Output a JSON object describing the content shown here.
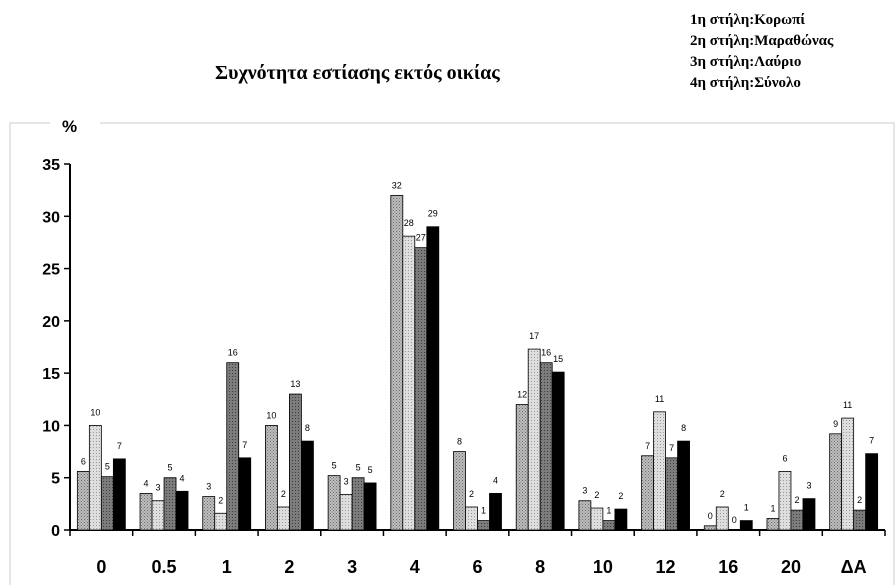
{
  "chart_data": {
    "type": "bar",
    "title": "Συχνότητα εστίασης εκτός οικίας",
    "ylabel": "%",
    "xlabel": "",
    "ylim": [
      0,
      35
    ],
    "yticks": [
      "0",
      "5",
      "10",
      "15",
      "20",
      "25",
      "30",
      "35"
    ],
    "categories": [
      "0",
      "0.5",
      "1",
      "2",
      "3",
      "4",
      "6",
      "8",
      "10",
      "12",
      "16",
      "20",
      "ΔΑ"
    ],
    "legend": [
      "1η στήλη:Κορωπί",
      "2η στήλη:Μαραθώνας",
      "3η στήλη:Λαύριο",
      "4η στήλη:Σύνολο"
    ],
    "grid": false,
    "series": [
      {
        "name": "Κορωπί",
        "color": "#c8c8c8",
        "values": [
          5.6,
          3.5,
          3.2,
          10.0,
          5.2,
          32.0,
          7.5,
          12.0,
          2.8,
          7.1,
          0.4,
          1.1,
          9.2
        ],
        "labels": [
          "6",
          "4",
          "3",
          "10",
          "5",
          "32",
          "8",
          "12",
          "3",
          "7",
          "0",
          "1",
          "9"
        ]
      },
      {
        "name": "Μαραθώνας",
        "color": "#dcdcdc",
        "values": [
          10.0,
          2.8,
          1.6,
          2.2,
          3.4,
          28.1,
          2.2,
          17.3,
          2.1,
          11.3,
          2.2,
          5.6,
          10.7
        ],
        "labels": [
          "10",
          "3",
          "2",
          "2",
          "3",
          "28",
          "2",
          "17",
          "2",
          "11",
          "2",
          "6",
          "11"
        ]
      },
      {
        "name": "Λαύριο",
        "color": "#808080",
        "values": [
          5.1,
          5.0,
          16.0,
          13.0,
          5.0,
          27.0,
          0.9,
          16.0,
          0.9,
          6.9,
          0.0,
          1.9,
          1.9
        ],
        "labels": [
          "5",
          "5",
          "16",
          "13",
          "5",
          "27",
          "1",
          "16",
          "1",
          "7",
          "0",
          "2",
          "2"
        ]
      },
      {
        "name": "Σύνολο",
        "color": "#000000",
        "values": [
          6.8,
          3.7,
          6.9,
          8.5,
          4.5,
          29.0,
          3.5,
          15.1,
          2.0,
          8.5,
          0.9,
          3.0,
          7.3
        ],
        "labels": [
          "7",
          "4",
          "7",
          "8",
          "5",
          "29",
          "4",
          "15",
          "2",
          "8",
          "1",
          "3",
          "7"
        ]
      }
    ]
  }
}
